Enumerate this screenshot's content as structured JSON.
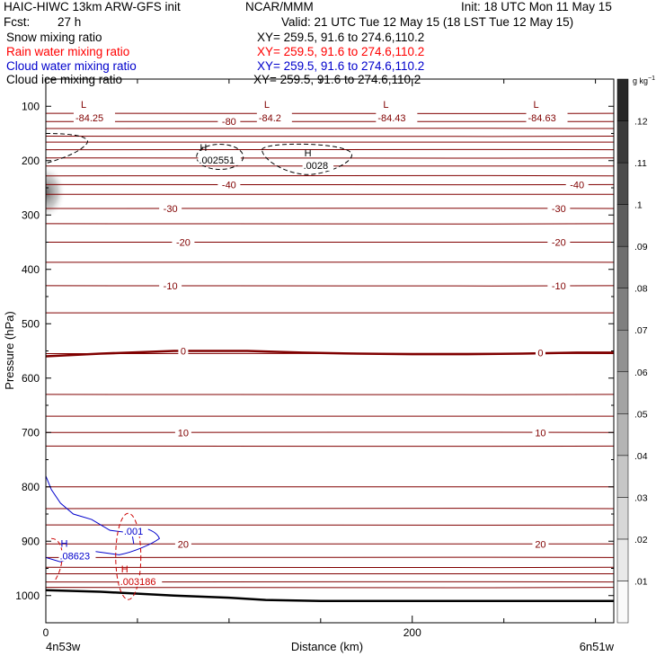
{
  "header": {
    "model": "HAIC-HIWC 13km ARW-GFS init",
    "org": "NCAR/MMM",
    "init": "Init: 18 UTC Mon 11 May 15",
    "fcst_label": "Fcst:",
    "fcst_value": "27 h",
    "valid": "Valid: 21 UTC Tue 12 May 15 (18 LST Tue 12 May 15)",
    "fields": [
      {
        "name": "Snow mixing ratio",
        "xy": "XY= 259.5, 91.6 to 274.6,110.2",
        "color": "#000000"
      },
      {
        "name": "Rain water mixing ratio",
        "xy": "XY= 259.5, 91.6 to 274.6,110.2",
        "color": "#ff0000"
      },
      {
        "name": "Cloud water mixing ratio",
        "xy": "XY= 259.5, 91.6 to 274.6,110.2",
        "color": "#0000cc"
      },
      {
        "name": "Cloud ice mixing ratio",
        "xy": "XY= 259.5, 91.6 to 274.6,110.2",
        "color": "#000000"
      }
    ]
  },
  "chart_data": {
    "type": "line",
    "xlabel": "Distance (km)",
    "ylabel": "Pressure (hPa)",
    "xlim": [
      0,
      310
    ],
    "ylim": [
      1050,
      50
    ],
    "x_ticks": [
      "0",
      "200"
    ],
    "x_tick_values": [
      0,
      200
    ],
    "x_minor_step": 50,
    "y_ticks": [
      "100",
      "200",
      "300",
      "400",
      "500",
      "600",
      "700",
      "800",
      "900",
      "1000"
    ],
    "y_tick_values": [
      100,
      200,
      300,
      400,
      500,
      600,
      700,
      800,
      900,
      1000
    ],
    "endpoint_left": "4n53w",
    "endpoint_right": "6n51w",
    "temperature_isotherms_pressure": [
      113,
      128,
      141,
      155,
      166,
      180,
      195,
      210,
      228,
      244,
      262,
      288,
      316,
      350,
      387,
      430,
      480,
      555,
      630,
      670,
      700,
      725,
      800,
      840,
      870,
      905,
      930,
      948,
      960,
      975,
      985
    ],
    "zero_isotherm_pressure": [
      560,
      555,
      550,
      550,
      553,
      555,
      556,
      556,
      555,
      553,
      553
    ],
    "zero_isotherm_x": [
      0,
      30,
      70,
      110,
      140,
      170,
      200,
      230,
      260,
      290,
      310
    ],
    "isotherm_labels": [
      {
        "text": "-80",
        "x": 100,
        "p": 128
      },
      {
        "text": "-40",
        "x": 100,
        "p": 244
      },
      {
        "text": "-40",
        "x": 290,
        "p": 244
      },
      {
        "text": "-30",
        "x": 68,
        "p": 288
      },
      {
        "text": "-30",
        "x": 280,
        "p": 288
      },
      {
        "text": "-20",
        "x": 75,
        "p": 350
      },
      {
        "text": "-20",
        "x": 280,
        "p": 350
      },
      {
        "text": "-10",
        "x": 68,
        "p": 430
      },
      {
        "text": "-10",
        "x": 280,
        "p": 430
      },
      {
        "text": "0",
        "x": 75,
        "p": 550
      },
      {
        "text": "0",
        "x": 270,
        "p": 553
      },
      {
        "text": "10",
        "x": 75,
        "p": 700
      },
      {
        "text": "10",
        "x": 270,
        "p": 700
      },
      {
        "text": "20",
        "x": 75,
        "p": 905
      },
      {
        "text": "20",
        "x": 270,
        "p": 905
      }
    ],
    "low_labels": [
      {
        "marker": "L",
        "value": "-84.25",
        "x": 25,
        "p": 113
      },
      {
        "marker": "L",
        "value": "-84.2",
        "x": 125,
        "p": 113
      },
      {
        "marker": "L",
        "value": "-84.43",
        "x": 190,
        "p": 113
      },
      {
        "marker": "L",
        "value": "-84.63",
        "x": 272,
        "p": 113
      }
    ],
    "high_labels": [
      {
        "marker": "H",
        "value": ".002551",
        "x": 88,
        "p": 192,
        "color": "#000000"
      },
      {
        "marker": "H",
        "value": ".0028",
        "x": 145,
        "p": 202,
        "color": "#000000"
      },
      {
        "marker": "H",
        "value": ".08623",
        "x": 12,
        "p": 920,
        "color": "#0000cc"
      },
      {
        "marker": "H",
        "value": ".003186",
        "x": 45,
        "p": 967,
        "color": "#cc0000"
      },
      {
        "marker": "",
        "value": ".001",
        "x": 47,
        "p": 875,
        "color": "#0000cc"
      }
    ],
    "surface_pressure": [
      990,
      993,
      1000,
      1004,
      1008,
      1010,
      1010,
      1010,
      1010,
      1010
    ],
    "surface_x": [
      0,
      30,
      70,
      100,
      120,
      150,
      200,
      250,
      290,
      310
    ],
    "cloud_water_line_x": [
      0,
      3,
      8,
      15,
      25,
      35,
      47,
      48
    ],
    "cloud_water_line_p": [
      780,
      805,
      830,
      850,
      860,
      880,
      885,
      905
    ],
    "colorbar": {
      "unit": "g kg",
      "unit_exp": "−1",
      "ticks": [
        ".01",
        ".02",
        ".03",
        ".04",
        ".05",
        ".06",
        ".07",
        ".08",
        ".09",
        ".1",
        ".11",
        ".12"
      ],
      "min": 0,
      "max": 0.13
    },
    "colors": {
      "isotherm": "#800000",
      "surface": "#000000",
      "cloud_water": "#0000cc",
      "rain": "#cc0000",
      "cloud_ice": "#000000"
    }
  }
}
